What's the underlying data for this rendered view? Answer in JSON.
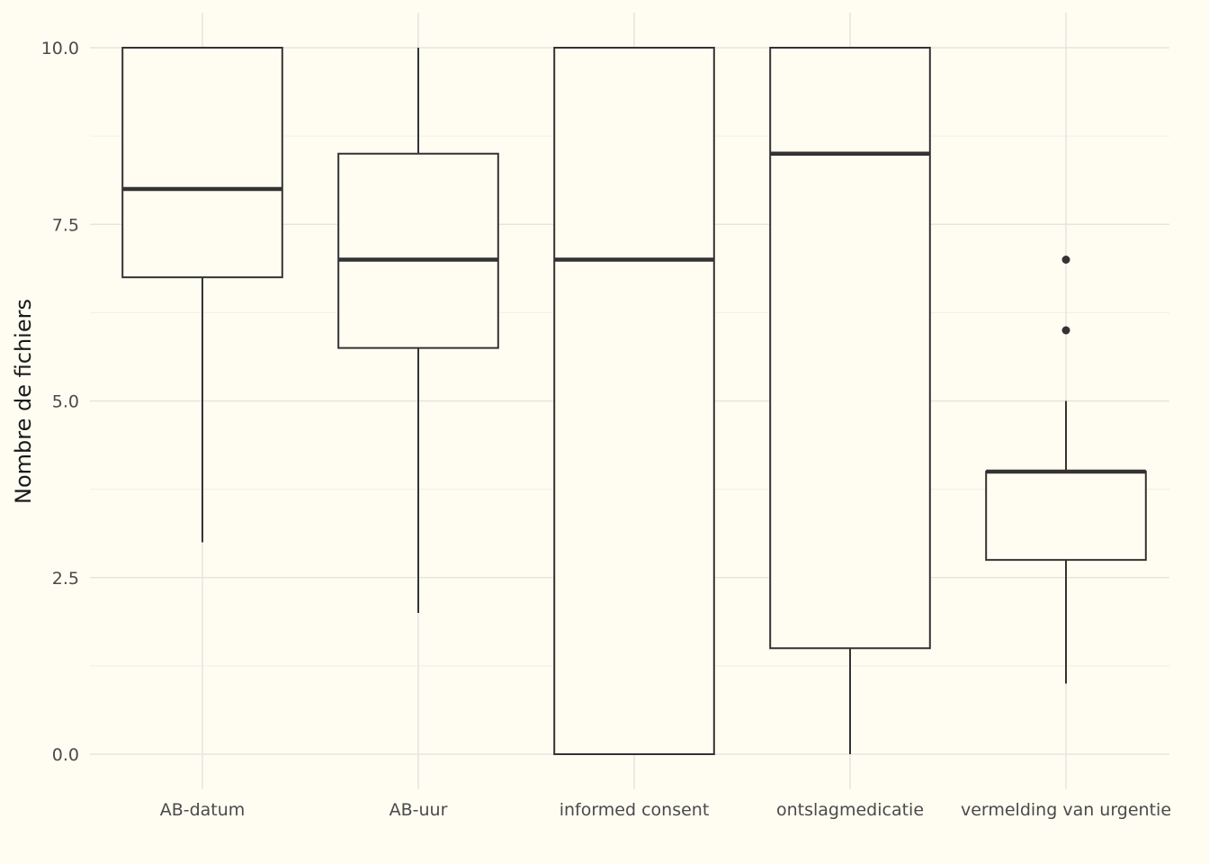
{
  "chart_data": {
    "type": "box",
    "title": "",
    "xlabel": "",
    "ylabel": "Nombre de fichiers",
    "ylim": [
      -0.5,
      10.5
    ],
    "y_ticks": [
      "0.0",
      "2.5",
      "5.0",
      "7.5",
      "10.0"
    ],
    "y_tick_values": [
      0,
      2.5,
      5,
      7.5,
      10
    ],
    "grid": true,
    "legend": "none",
    "categories": [
      "AB-datum",
      "AB-uur",
      "informed consent",
      "ontslagmedicatie",
      "vermelding van urgentie"
    ],
    "boxes": [
      {
        "category": "AB-datum",
        "whisker_low": 3,
        "q1": 6.75,
        "median": 8,
        "q3": 10,
        "whisker_high": 10,
        "outliers": []
      },
      {
        "category": "AB-uur",
        "whisker_low": 2,
        "q1": 5.75,
        "median": 7,
        "q3": 8.5,
        "whisker_high": 10,
        "outliers": []
      },
      {
        "category": "informed consent",
        "whisker_low": 0,
        "q1": 0,
        "median": 7,
        "q3": 10,
        "whisker_high": 10,
        "outliers": []
      },
      {
        "category": "ontslagmedicatie",
        "whisker_low": 0,
        "q1": 1.5,
        "median": 8.5,
        "q3": 10,
        "whisker_high": 10,
        "outliers": []
      },
      {
        "category": "vermelding van urgentie",
        "whisker_low": 1,
        "q1": 2.75,
        "median": 4,
        "q3": 4,
        "whisker_high": 5,
        "outliers": [
          6,
          7
        ]
      }
    ],
    "colors": {
      "background": "#fffdf2",
      "box_line": "#333333",
      "grid": "#e6e6df"
    }
  }
}
